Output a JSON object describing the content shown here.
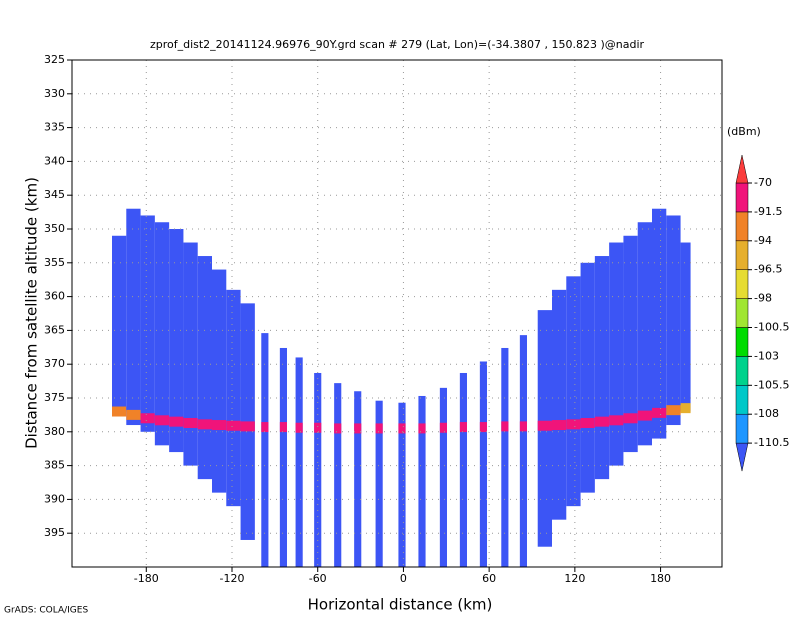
{
  "chart_data": {
    "type": "profile",
    "title": "zprof_dist2_20141124.96976_90Y.grd  scan # 279  (Lat, Lon)=(-34.3807 , 150.823 )@nadir",
    "xlabel": "Horizontal distance (km)",
    "ylabel": "Distance from satellite altitude (km)",
    "footer": "GrADS: COLA/IGES",
    "xlim": [
      -232,
      223
    ],
    "ylim": [
      400,
      325
    ],
    "xticks": [
      -180,
      -120,
      -60,
      0,
      60,
      120,
      180
    ],
    "yticks": [
      325,
      330,
      335,
      340,
      345,
      350,
      355,
      360,
      365,
      370,
      375,
      380,
      385,
      390,
      395
    ],
    "grid": true,
    "colorbar": {
      "unit": "(dBm)",
      "levels": [
        -110.5,
        -108,
        -105.5,
        -103,
        -100.5,
        -98,
        -96.5,
        -94,
        -91.5,
        -70
      ],
      "colors": [
        "#3c55f5",
        "#1e96ff",
        "#00c8c8",
        "#00d28c",
        "#00dc00",
        "#a0e632",
        "#e6dc32",
        "#e6af2d",
        "#f08228",
        "#f0147a",
        "#fa3c3c"
      ]
    },
    "columns": {
      "x0": [
        -204,
        -194,
        -184,
        -174,
        -164,
        -154,
        -144,
        -134,
        -124,
        -114,
        -99.5,
        -86.5,
        -75.5,
        -62.5,
        -48.5,
        -34.5,
        -19.5,
        -3.5,
        10.5,
        25.5,
        39.5,
        53.5,
        68.5,
        81.5,
        94,
        104,
        114,
        124,
        134,
        144,
        154,
        164,
        174,
        184,
        194
      ],
      "x1": [
        -194,
        -184,
        -174,
        -164,
        -154,
        -144,
        -134,
        -124,
        -114,
        -104,
        -94.5,
        -81.5,
        -70.5,
        -57.5,
        -43.5,
        -29.5,
        -14.5,
        1.5,
        15.5,
        30.5,
        44.5,
        58.5,
        73.5,
        86.5,
        104,
        114,
        124,
        134,
        144,
        154,
        164,
        174,
        184,
        194,
        201
      ],
      "top": [
        351,
        347,
        348,
        349,
        350,
        352,
        354,
        356,
        359,
        361,
        365.4,
        367.6,
        369,
        371.3,
        372.8,
        374,
        375.4,
        375.7,
        374.7,
        373.5,
        371.3,
        369.6,
        367.6,
        365.7,
        362,
        359,
        357,
        355,
        354,
        352,
        351,
        349,
        347,
        348,
        352
      ],
      "bottom": [
        377,
        379,
        380,
        382,
        383,
        385,
        387,
        389,
        391,
        396,
        400,
        400,
        400,
        400,
        400,
        400,
        400,
        400,
        400,
        400,
        400,
        400,
        400,
        400,
        397,
        393,
        391,
        389,
        387,
        385,
        383,
        382,
        381,
        379,
        377
      ],
      "surface": [
        377,
        377.5,
        378,
        378.3,
        378.5,
        378.7,
        378.9,
        379,
        379.1,
        379.2,
        379.3,
        379.3,
        379.4,
        379.4,
        379.5,
        379.5,
        379.5,
        379.5,
        379.5,
        379.4,
        379.3,
        379.3,
        379.2,
        379.2,
        379.1,
        379,
        378.9,
        378.7,
        378.5,
        378.3,
        378,
        377.6,
        377.2,
        376.8,
        376.5
      ],
      "peak": [
        -93,
        -92,
        -88,
        -82,
        -80,
        -80,
        -80,
        -80,
        -80,
        -80,
        -80,
        -80,
        -80,
        -80,
        -80,
        -80,
        -80,
        -80,
        -80,
        -80,
        -80,
        -80,
        -80,
        -80,
        -80,
        -80,
        -80,
        -80,
        -80,
        -82,
        -85,
        -88,
        -91,
        -93,
        -95
      ]
    }
  }
}
